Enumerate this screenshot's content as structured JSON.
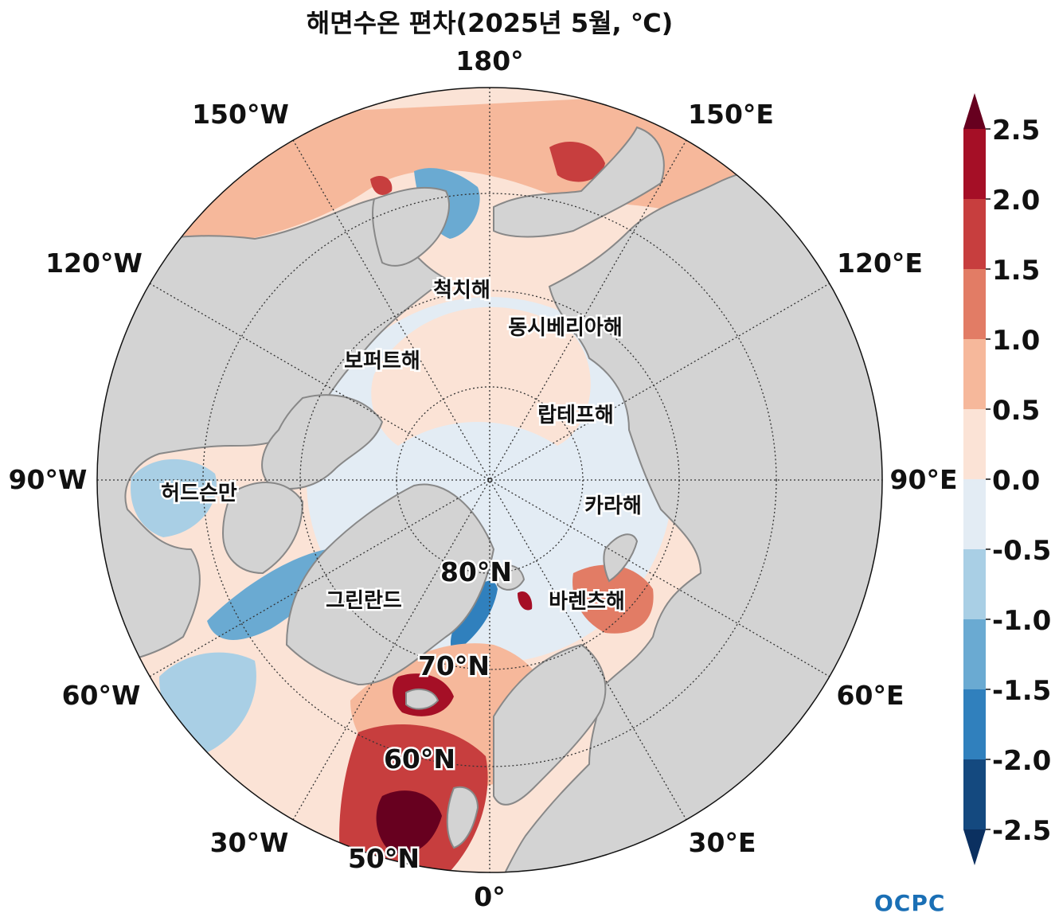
{
  "title": "해면수온 편차(2025년 5월, ℃)",
  "logo": "OCPC",
  "longitude_labels": {
    "lon_180": "180°",
    "lon_150w": "150°W",
    "lon_150e": "150°E",
    "lon_120w": "120°W",
    "lon_120e": "120°E",
    "lon_90w": "90°W",
    "lon_90e": "90°E",
    "lon_60w": "60°W",
    "lon_60e": "60°E",
    "lon_30w": "30°W",
    "lon_30e": "30°E",
    "lon_0": "0°"
  },
  "latitude_labels": {
    "lat_80": "80°N",
    "lat_70": "70°N",
    "lat_60": "60°N",
    "lat_50": "50°N"
  },
  "region_labels": {
    "chukchi": "척치해",
    "east_siberian": "동시베리아해",
    "beaufort": "보퍼트해",
    "laptev": "랍테프해",
    "hudson": "허드슨만",
    "kara": "카라해",
    "greenland": "그린란드",
    "barents": "바렌츠해"
  },
  "colorbar": {
    "ticks": [
      "2.5",
      "2.0",
      "1.5",
      "1.0",
      "0.5",
      "0.0",
      "-0.5",
      "-1.0",
      "-1.5",
      "-2.0",
      "-2.5"
    ],
    "colors_top_to_bottom": [
      "#67001f",
      "#a50f26",
      "#c73e3e",
      "#e27c65",
      "#f6b89b",
      "#fbe3d6",
      "#e3ecf4",
      "#a9cfe5",
      "#6aaad2",
      "#3080bd",
      "#14497f",
      "#0b3060"
    ],
    "land_color": "#d3d3d3"
  }
}
